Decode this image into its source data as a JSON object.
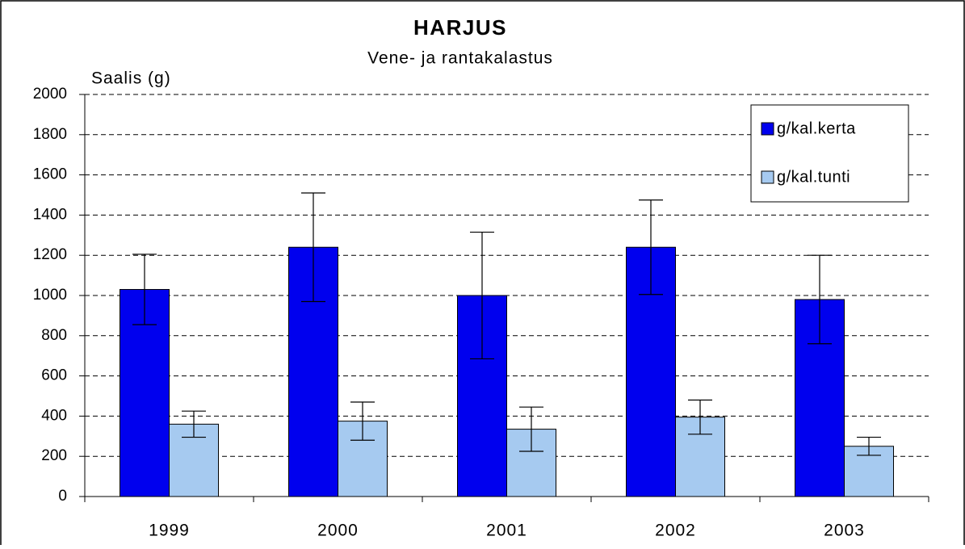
{
  "chart_data": {
    "type": "bar",
    "title": "HARJUS",
    "subtitle": "Vene- ja rantakalastus",
    "y_label": "Saalis (g)",
    "categories": [
      "1999",
      "2000",
      "2001",
      "2002",
      "2003"
    ],
    "series": [
      {
        "name": "g/kal.kerta",
        "color": "#0000ee",
        "values": [
          1030,
          1240,
          1000,
          1240,
          980
        ],
        "errors": [
          175,
          270,
          315,
          235,
          220
        ]
      },
      {
        "name": "g/kal.tunti",
        "color": "#a6caf0",
        "values": [
          360,
          375,
          335,
          395,
          250
        ],
        "errors": [
          65,
          95,
          110,
          85,
          45
        ]
      }
    ],
    "ylim": [
      0,
      2000
    ],
    "yticks": [
      0,
      200,
      400,
      600,
      800,
      1000,
      1200,
      1400,
      1600,
      1800,
      2000
    ],
    "grid": true,
    "legend": "top-right"
  }
}
